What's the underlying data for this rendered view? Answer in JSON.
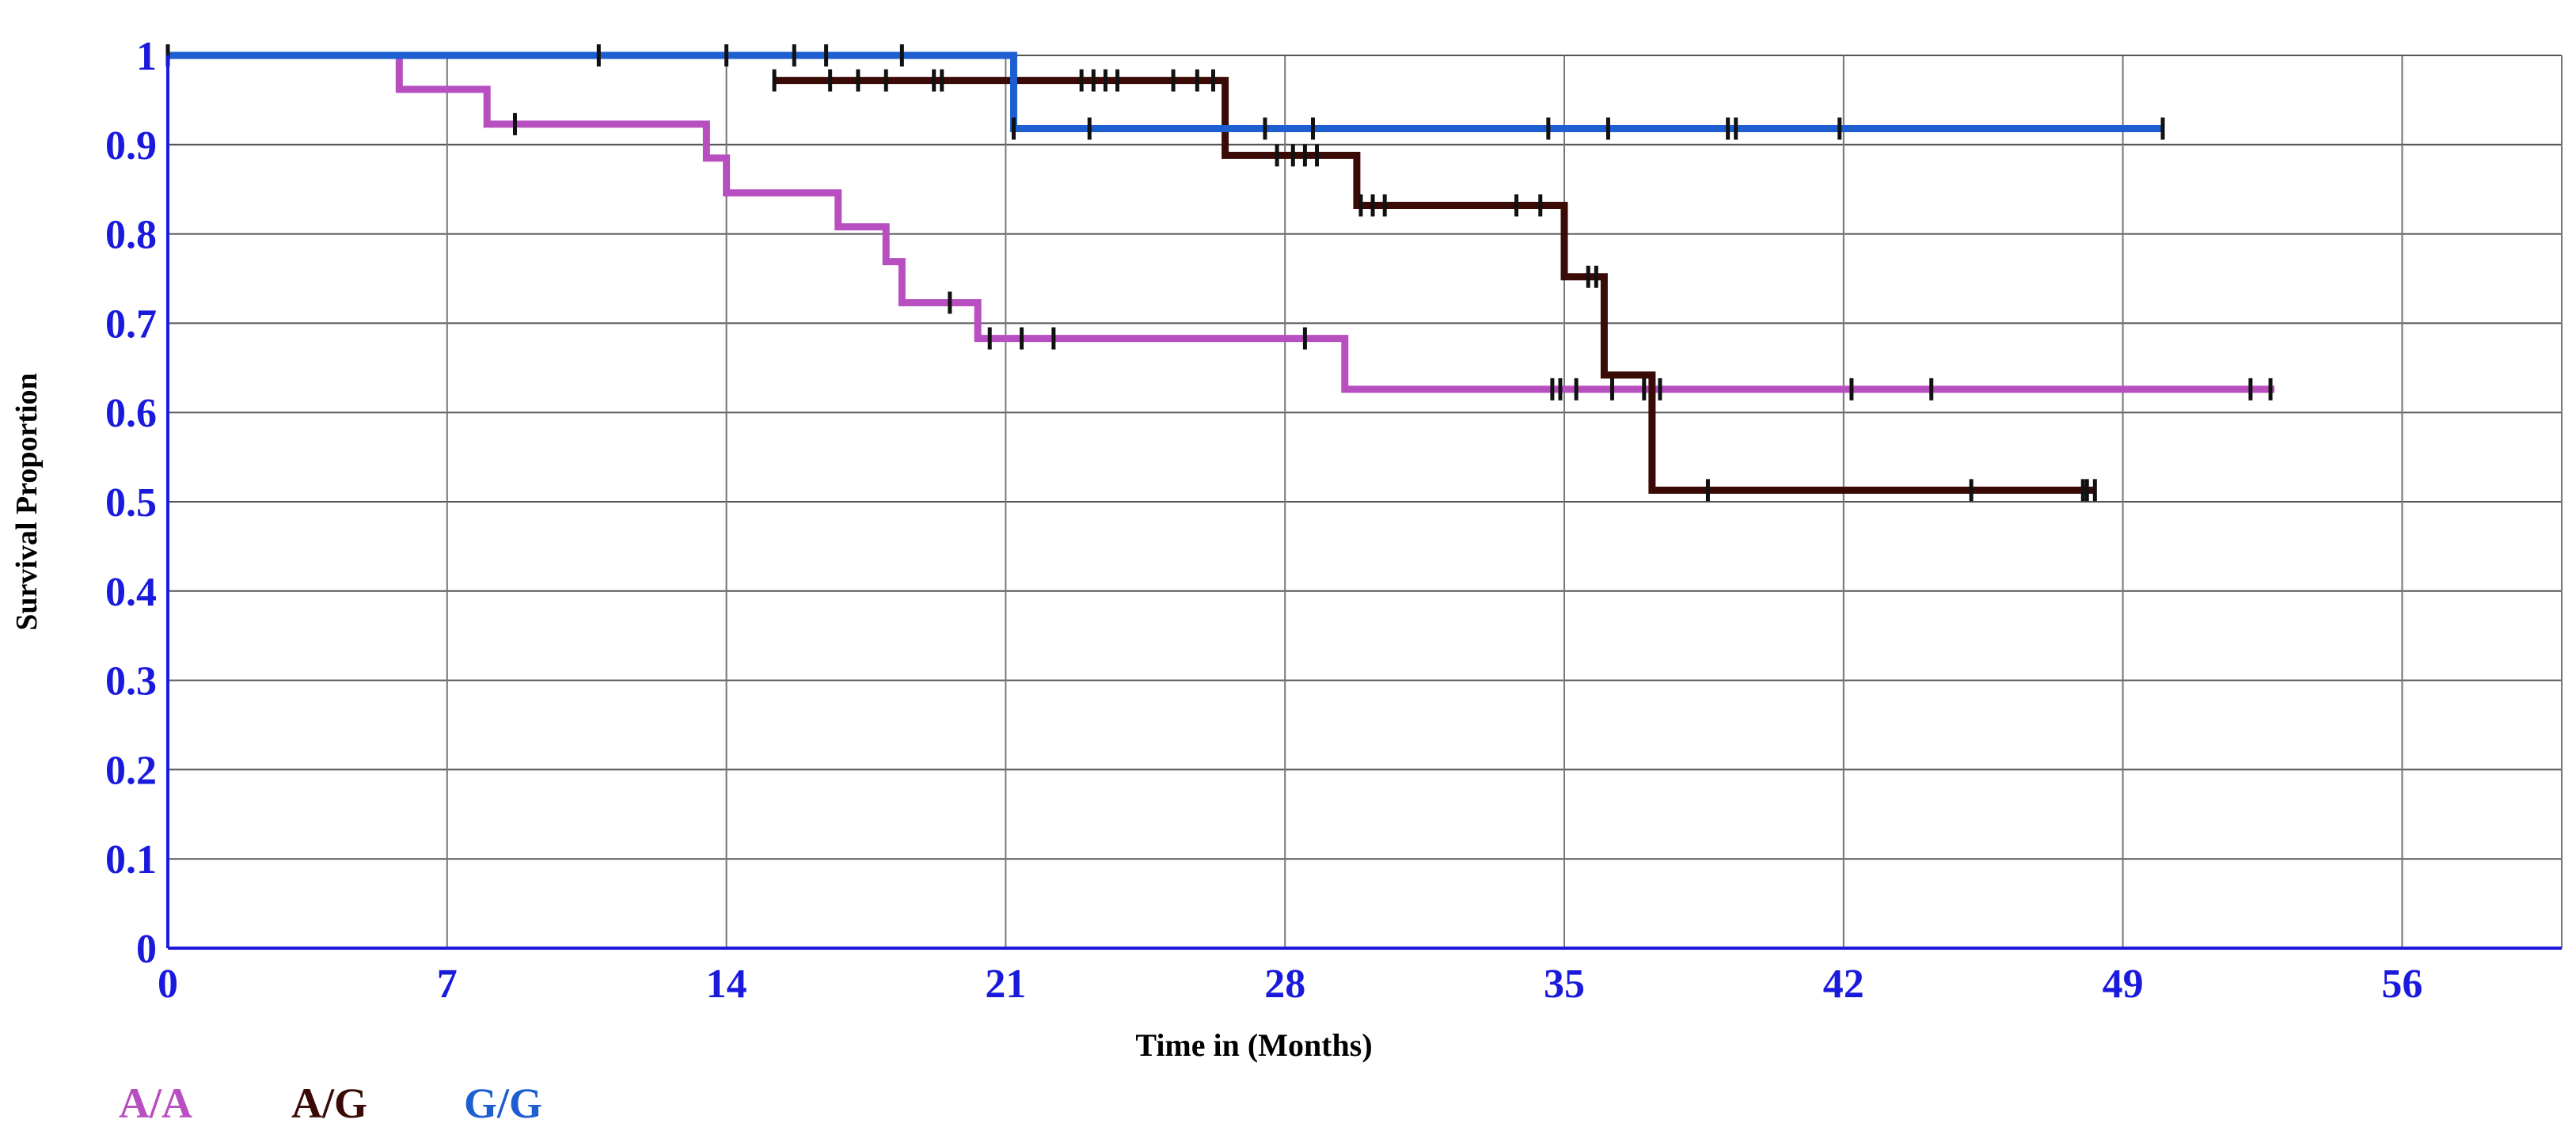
{
  "chart_data": {
    "type": "line",
    "title": "",
    "xlabel": "Time in (Months)",
    "ylabel": "Survival Proportion",
    "xlim": [
      0,
      60
    ],
    "ylim": [
      0,
      1
    ],
    "x_ticks": [
      0,
      7,
      14,
      21,
      28,
      35,
      42,
      49,
      56
    ],
    "y_ticks": [
      0,
      0.1,
      0.2,
      0.3,
      0.4,
      0.5,
      0.6,
      0.7,
      0.8,
      0.9,
      1
    ],
    "y_tick_labels": [
      "0",
      "0.1",
      "0.2",
      "0.3",
      "0.4",
      "0.5",
      "0.6",
      "0.7",
      "0.8",
      "0.9",
      "1"
    ],
    "grid": true,
    "legend_position": "bottom-left",
    "axis_color": "#1a1adc",
    "series": [
      {
        "name": "A/A",
        "color": "#b84fc0",
        "steps": [
          [
            0,
            1
          ],
          [
            5.8,
            0.962
          ],
          [
            8.0,
            0.923
          ],
          [
            13.5,
            0.885
          ],
          [
            14.0,
            0.846
          ],
          [
            16.8,
            0.808
          ],
          [
            18.0,
            0.769
          ],
          [
            18.4,
            0.723
          ],
          [
            20.3,
            0.683
          ],
          [
            29.5,
            0.626
          ],
          [
            52.8,
            0.626
          ]
        ],
        "censor": [
          8.7,
          19.6,
          20.6,
          21.4,
          22.2,
          28.5,
          34.7,
          34.9,
          35.3,
          36.2,
          37.0,
          37.4,
          42.2,
          44.2,
          52.2,
          52.7
        ]
      },
      {
        "name": "A/G",
        "color": "#3a0a06",
        "steps": [
          [
            15.2,
            0.972
          ],
          [
            26.5,
            0.888
          ],
          [
            29.8,
            0.832
          ],
          [
            35.0,
            0.752
          ],
          [
            36.0,
            0.642
          ],
          [
            37.2,
            0.513
          ],
          [
            48.3,
            0.513
          ]
        ],
        "censor": [
          15.2,
          16.6,
          17.3,
          18.0,
          19.2,
          19.4,
          22.9,
          23.2,
          23.5,
          23.8,
          25.2,
          25.8,
          26.2,
          27.8,
          28.2,
          28.5,
          28.8,
          29.9,
          30.2,
          30.5,
          33.8,
          34.4,
          35.6,
          35.8,
          38.6,
          45.2,
          48.0,
          48.1,
          48.3
        ]
      },
      {
        "name": "G/G",
        "color": "#1d5fd0",
        "steps": [
          [
            0,
            1
          ],
          [
            21.2,
            0.918
          ],
          [
            50.0,
            0.918
          ]
        ],
        "censor": [
          0,
          10.8,
          14.0,
          15.7,
          16.5,
          18.4,
          21.2,
          23.1,
          27.5,
          28.7,
          34.6,
          36.1,
          39.1,
          39.3,
          41.9,
          50.0
        ]
      }
    ]
  }
}
